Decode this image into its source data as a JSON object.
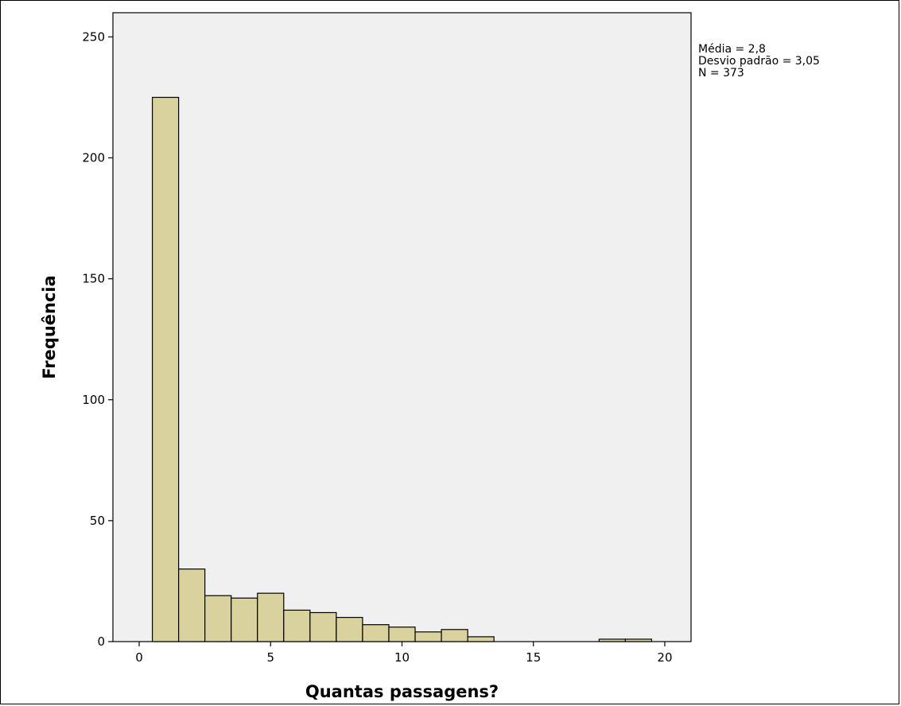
{
  "chart_data": {
    "type": "bar",
    "subtype": "histogram",
    "xlabel": "Quantas passagens?",
    "ylabel": "Frequência",
    "xlim": [
      -1,
      21
    ],
    "ylim": [
      0,
      260
    ],
    "x_ticks": [
      0,
      5,
      10,
      15,
      20
    ],
    "y_ticks": [
      0,
      50,
      100,
      150,
      200,
      250
    ],
    "bin_width": 1,
    "bins": [
      {
        "x0": 0.5,
        "x1": 1.5,
        "value": 225
      },
      {
        "x0": 1.5,
        "x1": 2.5,
        "value": 30
      },
      {
        "x0": 2.5,
        "x1": 3.5,
        "value": 19
      },
      {
        "x0": 3.5,
        "x1": 4.5,
        "value": 18
      },
      {
        "x0": 4.5,
        "x1": 5.5,
        "value": 20
      },
      {
        "x0": 5.5,
        "x1": 6.5,
        "value": 13
      },
      {
        "x0": 6.5,
        "x1": 7.5,
        "value": 12
      },
      {
        "x0": 7.5,
        "x1": 8.5,
        "value": 10
      },
      {
        "x0": 8.5,
        "x1": 9.5,
        "value": 7
      },
      {
        "x0": 9.5,
        "x1": 10.5,
        "value": 6
      },
      {
        "x0": 10.5,
        "x1": 11.5,
        "value": 4
      },
      {
        "x0": 11.5,
        "x1": 12.5,
        "value": 5
      },
      {
        "x0": 12.5,
        "x1": 13.5,
        "value": 2
      },
      {
        "x0": 17.5,
        "x1": 18.5,
        "value": 1
      },
      {
        "x0": 18.5,
        "x1": 19.5,
        "value": 1
      }
    ],
    "stats": {
      "mean_label": "Média = 2,8",
      "sd_label": "Desvio padrão = 3,05",
      "n_label": "N = 373"
    },
    "grid": false,
    "legend": "none",
    "colors": {
      "bar_fill": "#d9d29e",
      "bar_stroke": "#000000",
      "plot_background": "#f0f0f0"
    }
  }
}
